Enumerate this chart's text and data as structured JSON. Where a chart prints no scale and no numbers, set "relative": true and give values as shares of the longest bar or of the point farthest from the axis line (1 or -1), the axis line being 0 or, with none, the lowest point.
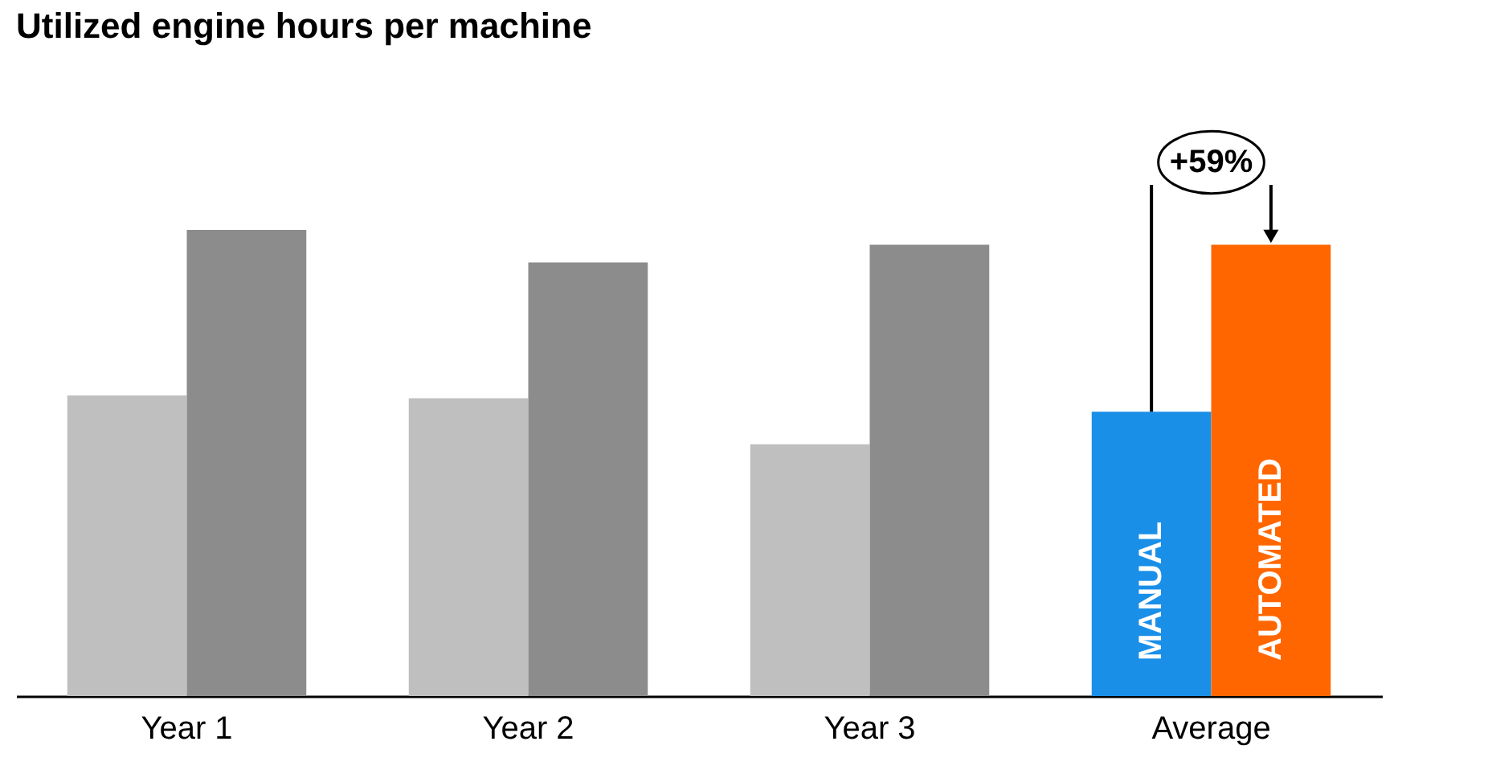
{
  "chart_data": {
    "type": "bar",
    "title": "Utilized engine hours per machine",
    "relative": true,
    "categories": [
      "Year 1",
      "Year 2",
      "Year 3",
      "Average"
    ],
    "series": [
      {
        "name": "MANUAL",
        "colors": [
          "#bfbfbf",
          "#bfbfbf",
          "#bfbfbf",
          "#1a8fe8"
        ],
        "values": [
          0.645,
          0.639,
          0.54,
          0.61
        ]
      },
      {
        "name": "AUTOMATED",
        "colors": [
          "#8c8c8c",
          "#8c8c8c",
          "#8c8c8c",
          "#ff6600"
        ],
        "values": [
          1,
          0.93,
          0.968,
          0.968
        ]
      }
    ],
    "annotations": [
      "+59%"
    ]
  }
}
